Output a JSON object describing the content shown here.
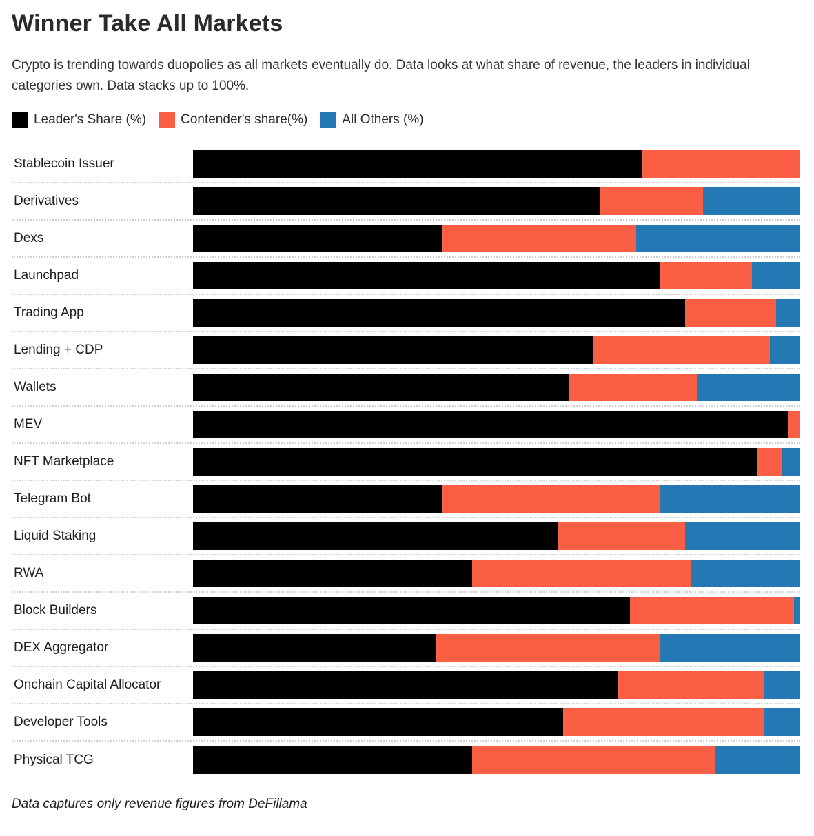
{
  "title": "Winner Take All Markets",
  "subtitle": "Crypto is trending towards duopolies as all markets eventually do. Data looks at what share of revenue, the leaders in individual categories own. Data stacks up to 100%.",
  "footnote": "Data captures only revenue figures from DeFillama",
  "colors": {
    "leader": "#000000",
    "contender": "#fa5e45",
    "others": "#2478b4",
    "separator": "#cfcfcf",
    "background": "#ffffff"
  },
  "legend": [
    {
      "key": "leader",
      "label": "Leader's Share (%)",
      "color": "#000000"
    },
    {
      "key": "contender",
      "label": "Contender's share(%)",
      "color": "#fa5e45"
    },
    {
      "key": "others",
      "label": "All Others (%)",
      "color": "#2478b4"
    }
  ],
  "chart_data": {
    "type": "bar",
    "orientation": "horizontal",
    "stacked": true,
    "unit": "percent",
    "xlim": [
      0,
      100
    ],
    "grid": "dotted-row-separators",
    "legend_position": "top",
    "title": "Winner Take All Markets",
    "categories": [
      "Stablecoin Issuer",
      "Derivatives",
      "Dexs",
      "Launchpad",
      "Trading App",
      "Lending + CDP",
      "Wallets",
      "MEV",
      "NFT Marketplace",
      "Telegram Bot",
      "Liquid Staking",
      "RWA",
      "Block Builders",
      "DEX Aggregator",
      "Onchain Capital Allocator",
      "Developer Tools",
      "Physical TCG"
    ],
    "series": [
      {
        "key": "leader",
        "name": "Leader's Share (%)",
        "color": "#000000",
        "values": [
          74,
          67,
          41,
          77,
          81,
          66,
          62,
          98,
          93,
          41,
          60,
          46,
          72,
          40,
          70,
          61,
          46
        ]
      },
      {
        "key": "contender",
        "name": "Contender's share(%)",
        "color": "#fa5e45",
        "values": [
          26,
          17,
          32,
          15,
          15,
          29,
          21,
          2,
          4,
          36,
          21,
          36,
          27,
          37,
          24,
          33,
          40
        ]
      },
      {
        "key": "others",
        "name": "All Others (%)",
        "color": "#2478b4",
        "values": [
          0,
          16,
          27,
          8,
          4,
          5,
          17,
          0,
          3,
          23,
          19,
          18,
          1,
          23,
          6,
          6,
          14
        ]
      }
    ]
  }
}
